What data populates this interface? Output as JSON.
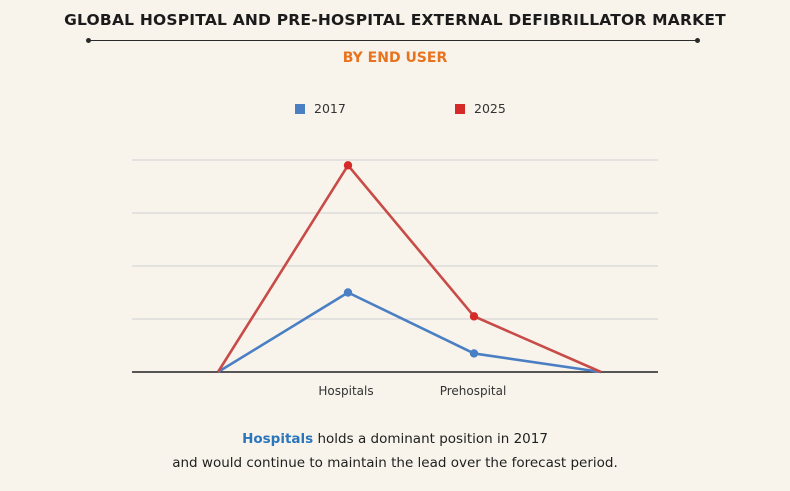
{
  "header": {
    "title": "GLOBAL HOSPITAL AND PRE-HOSPITAL EXTERNAL DEFIBRILLATOR MARKET",
    "subtitle": "BY END USER"
  },
  "caption": {
    "highlight": "Hospitals",
    "line1_rest": " holds a dominant position in 2017",
    "line2": "and would continue to maintain the lead over the forecast period."
  },
  "colors": {
    "series_2017": "#4a7fc4",
    "series_2025": "#c84b47",
    "marker_2025": "#d42a28",
    "grid": "#cfcfcf",
    "baseline": "#222222",
    "subtitle": "#e8731f"
  },
  "chart_data": {
    "type": "line",
    "categories": [
      "",
      "Hospitals",
      "Prehospital",
      ""
    ],
    "series": [
      {
        "name": "2017",
        "values": [
          0,
          1.5,
          0.35,
          0
        ],
        "markers": [
          false,
          true,
          true,
          false
        ]
      },
      {
        "name": "2025",
        "values": [
          0,
          3.9,
          1.05,
          0
        ],
        "markers": [
          false,
          true,
          true,
          false
        ]
      }
    ],
    "ylim": [
      0,
      4
    ],
    "grid": true,
    "axis_labels_shown": false,
    "legend": "top-center"
  }
}
